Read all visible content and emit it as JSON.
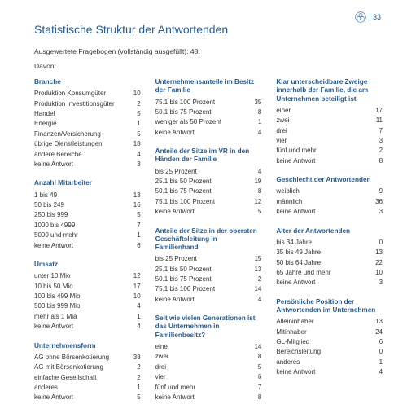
{
  "page_number": "33",
  "title": "Statistische Struktur der Antwortenden",
  "subtitle": "Ausgewertete Fragebogen (vollständig ausgefüllt): 48.",
  "davon": "Davon:",
  "colors": {
    "accent": "#2a5a8a",
    "text": "#333333",
    "bg": "#ffffff"
  },
  "columns": [
    [
      {
        "title": "Branche",
        "rows": [
          [
            "Produktion Konsumgüter",
            "10"
          ],
          [
            "Produktion Investitionsgüter",
            "2"
          ],
          [
            "Handel",
            "5"
          ],
          [
            "Energie",
            "1"
          ],
          [
            "Finanzen/Versicherung",
            "5"
          ],
          [
            "übrige Dienstleistungen",
            "18"
          ],
          [
            "andere Bereiche",
            "4"
          ],
          [
            "keine Antwort",
            "3"
          ]
        ]
      },
      {
        "title": "Anzahl Mitarbeiter",
        "rows": [
          [
            "1 bis 49",
            "13"
          ],
          [
            "50 bis 249",
            "16"
          ],
          [
            "250 bis 999",
            "5"
          ],
          [
            "1000 bis 4999",
            "7"
          ],
          [
            "5000 und mehr",
            "1"
          ],
          [
            "keine Antwort",
            "6"
          ]
        ]
      },
      {
        "title": "Umsatz",
        "rows": [
          [
            "unter 10 Mio",
            "12"
          ],
          [
            "10 bis 50 Mio",
            "17"
          ],
          [
            "100 bis 499 Mio",
            "10"
          ],
          [
            "500 bis 999 Mio",
            "4"
          ],
          [
            "mehr als 1 Mia",
            "1"
          ],
          [
            "keine Antwort",
            "4"
          ]
        ]
      },
      {
        "title": "Unternehmensform",
        "rows": [
          [
            "AG ohne Börsenkotierung",
            "38"
          ],
          [
            "AG mit Börsenkotierung",
            "2"
          ],
          [
            "einfache Gesellschaft",
            "2"
          ],
          [
            "anderes",
            "1"
          ],
          [
            "keine Antwort",
            "5"
          ]
        ]
      }
    ],
    [
      {
        "title": "Unternehmensanteile im Besitz der Familie",
        "rows": [
          [
            "75.1 bis 100 Prozent",
            "35"
          ],
          [
            "50.1 bis 75 Prozent",
            "8"
          ],
          [
            "weniger als 50 Prozent",
            "1"
          ],
          [
            "keine Antwort",
            "4"
          ]
        ]
      },
      {
        "title": "Anteile der Sitze im VR in den Händen der Familie",
        "rows": [
          [
            "bis 25 Prozent",
            "4"
          ],
          [
            "25.1 bis 50 Prozent",
            "19"
          ],
          [
            "50.1 bis 75 Prozent",
            "8"
          ],
          [
            "75.1 bis 100 Prozent",
            "12"
          ],
          [
            "keine Antwort",
            "5"
          ]
        ]
      },
      {
        "title": "Anteile der Sitze in der obersten Geschäftsleitung in Familienhand",
        "rows": [
          [
            "bis 25 Prozent",
            "15"
          ],
          [
            "25.1 bis 50 Prozent",
            "13"
          ],
          [
            "50.1 bis 75 Prozent",
            "2"
          ],
          [
            "75.1 bis 100 Prozent",
            "14"
          ],
          [
            "keine Antwort",
            "4"
          ]
        ]
      },
      {
        "title": "Seit wie vielen Generationen ist das Unternehmen in Familienbesitz?",
        "rows": [
          [
            "eine",
            "14"
          ],
          [
            "zwei",
            "8"
          ],
          [
            "drei",
            "5"
          ],
          [
            "vier",
            "6"
          ],
          [
            "fünf und mehr",
            "7"
          ],
          [
            "keine Antwort",
            "8"
          ]
        ]
      }
    ],
    [
      {
        "title": "Klar unterscheidbare Zweige innerhalb der Familie, die am Unternehmen beteiligt ist",
        "rows": [
          [
            "einer",
            "17"
          ],
          [
            "zwei",
            "11"
          ],
          [
            "drei",
            "7"
          ],
          [
            "vier",
            "3"
          ],
          [
            "fünf und mehr",
            "2"
          ],
          [
            "keine Antwort",
            "8"
          ]
        ]
      },
      {
        "title": "Geschlecht der Antwortenden",
        "rows": [
          [
            "weiblich",
            "9"
          ],
          [
            "männlich",
            "36"
          ],
          [
            "keine Antwort",
            "3"
          ]
        ]
      },
      {
        "title": "Alter der Antwortenden",
        "rows": [
          [
            "bis 34 Jahre",
            "0"
          ],
          [
            "35 bis 49 Jahre",
            "13"
          ],
          [
            "50 bis 64 Jahre",
            "22"
          ],
          [
            "65 Jahre und mehr",
            "10"
          ],
          [
            "keine Antwort",
            "3"
          ]
        ]
      },
      {
        "title": "Persönliche Position der Antwortenden im Unternehmen",
        "rows": [
          [
            "Alleininhaber",
            "13"
          ],
          [
            "Mitinhaber",
            "24"
          ],
          [
            "GL-Mitglied",
            "6"
          ],
          [
            "Bereichsleitung",
            "0"
          ],
          [
            "anderes",
            "1"
          ],
          [
            "keine Antwort",
            "4"
          ]
        ]
      }
    ]
  ]
}
